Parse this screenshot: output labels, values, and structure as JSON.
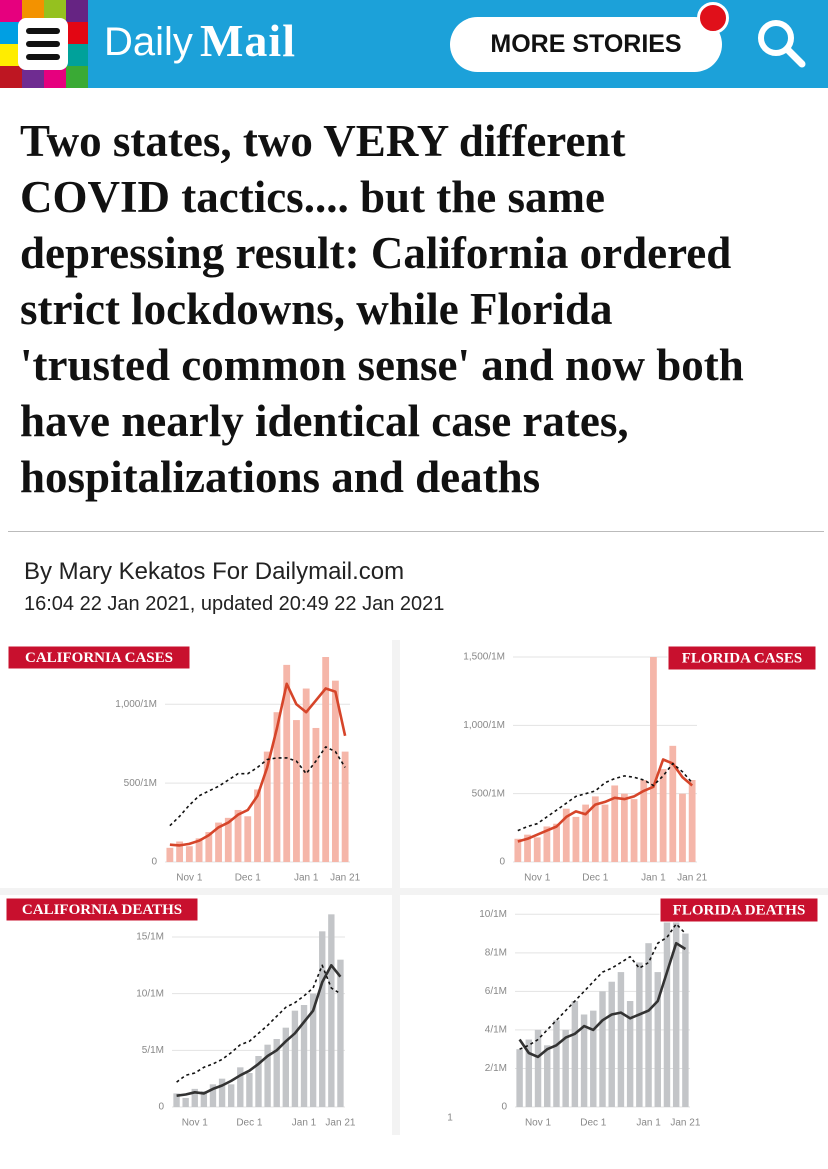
{
  "header": {
    "logo_daily": "Daily",
    "logo_mail": "Mail",
    "button": "MORE STORIES"
  },
  "article": {
    "headline_lines": [
      "Two states, two VERY different",
      "COVID tactics.... but the same",
      "depressing result: California ordered",
      "strict lockdowns, while Florida",
      "'trusted common sense' and now both",
      "have nearly identical case rates,",
      "hospitalizations and deaths"
    ],
    "byline": "By Mary Kekatos For Dailymail.com",
    "timestamp": "16:04 22 Jan 2021, updated 20:49 22 Jan 2021"
  },
  "chart_data": [
    {
      "type": "combo",
      "label": "CALIFORNIA CASES",
      "label_corner": "left",
      "categories": [
        null,
        null,
        "Nov 1",
        null,
        null,
        null,
        null,
        null,
        "Dec 1",
        null,
        null,
        null,
        null,
        null,
        "Jan 1",
        null,
        null,
        null,
        "Jan 21"
      ],
      "ylim": [
        0,
        1300
      ],
      "yticks": [
        0,
        {
          "value": 500,
          "label": "500/1M"
        },
        {
          "value": 1000,
          "label": "1,000/1M"
        }
      ],
      "grid": true,
      "series": [
        {
          "kind": "bar",
          "color": "#f5b6a9",
          "values": [
            90,
            130,
            100,
            150,
            190,
            250,
            280,
            330,
            290,
            460,
            700,
            950,
            1250,
            900,
            1100,
            850,
            1300,
            1150,
            700
          ]
        },
        {
          "kind": "line",
          "color": "#d6452a",
          "values": [
            110,
            105,
            115,
            135,
            170,
            220,
            250,
            300,
            330,
            420,
            600,
            850,
            1130,
            1000,
            950,
            1025,
            1100,
            1080,
            800
          ]
        },
        {
          "kind": "line",
          "dash": true,
          "color": "#111111",
          "values": [
            230,
            290,
            360,
            420,
            450,
            480,
            520,
            560,
            560,
            600,
            650,
            660,
            660,
            640,
            560,
            640,
            730,
            700,
            600
          ]
        }
      ]
    },
    {
      "type": "combo",
      "label": "FLORIDA CASES",
      "label_corner": "right",
      "categories": [
        null,
        null,
        "Nov 1",
        null,
        null,
        null,
        null,
        null,
        "Dec 1",
        null,
        null,
        null,
        null,
        null,
        "Jan 1",
        null,
        null,
        null,
        "Jan 21"
      ],
      "ylim": [
        0,
        1500
      ],
      "yticks": [
        0,
        {
          "value": 500,
          "label": "500/1M"
        },
        {
          "value": 1000,
          "label": "1,000/1M"
        },
        {
          "value": 1500,
          "label": "1,500/1M"
        }
      ],
      "grid": true,
      "series": [
        {
          "kind": "bar",
          "color": "#f5b6a9",
          "values": [
            170,
            200,
            180,
            260,
            280,
            390,
            330,
            420,
            480,
            420,
            560,
            500,
            460,
            600,
            1500,
            680,
            850,
            500,
            600
          ]
        },
        {
          "kind": "line",
          "color": "#d6452a",
          "values": [
            150,
            170,
            200,
            230,
            260,
            330,
            370,
            350,
            420,
            440,
            470,
            460,
            480,
            520,
            550,
            750,
            720,
            620,
            560
          ]
        },
        {
          "kind": "line",
          "dash": true,
          "color": "#111111",
          "values": [
            230,
            260,
            280,
            330,
            380,
            430,
            480,
            500,
            520,
            580,
            610,
            630,
            620,
            600,
            560,
            630,
            720,
            660,
            580
          ]
        }
      ]
    },
    {
      "type": "combo",
      "label": "CALIFORNIA DEATHS",
      "label_corner": "left",
      "categories": [
        null,
        null,
        "Nov 1",
        null,
        null,
        null,
        null,
        null,
        "Dec 1",
        null,
        null,
        null,
        null,
        null,
        "Jan 1",
        null,
        null,
        null,
        "Jan 21"
      ],
      "ylim": [
        0,
        18
      ],
      "yticks": [
        0,
        {
          "value": 5,
          "label": "5/1M"
        },
        {
          "value": 10,
          "label": "10/1M"
        },
        {
          "value": 15,
          "label": "15/1M"
        }
      ],
      "grid": true,
      "series": [
        {
          "kind": "bar",
          "color": "#c3c5c8",
          "values": [
            1.2,
            0.8,
            1.6,
            1.4,
            2.0,
            2.5,
            2.0,
            3.5,
            3.0,
            4.5,
            5.5,
            6.0,
            7.0,
            8.5,
            9.0,
            10.0,
            15.5,
            17.0,
            13.0
          ]
        },
        {
          "kind": "line",
          "color": "#333333",
          "values": [
            1.0,
            1.1,
            1.3,
            1.2,
            1.6,
            1.9,
            2.3,
            2.8,
            3.2,
            3.8,
            4.5,
            5.0,
            5.8,
            6.5,
            7.5,
            8.5,
            11.0,
            12.5,
            11.5
          ]
        },
        {
          "kind": "line",
          "dash": true,
          "color": "#111111",
          "values": [
            2.2,
            2.8,
            3.0,
            3.5,
            3.8,
            4.2,
            4.8,
            5.5,
            5.8,
            6.5,
            7.2,
            8.0,
            8.8,
            9.2,
            9.8,
            10.5,
            12.5,
            10.5,
            10.0
          ]
        }
      ]
    },
    {
      "type": "combo",
      "label": "FLORIDA DEATHS",
      "label_corner": "right",
      "footnote": "1",
      "categories": [
        null,
        null,
        "Nov 1",
        null,
        null,
        null,
        null,
        null,
        "Dec 1",
        null,
        null,
        null,
        null,
        null,
        "Jan 1",
        null,
        null,
        null,
        "Jan 21"
      ],
      "ylim": [
        0,
        11
      ],
      "yticks": [
        0,
        {
          "value": 2,
          "label": "2/1M"
        },
        {
          "value": 4,
          "label": "4/1M"
        },
        {
          "value": 6,
          "label": "6/1M"
        },
        {
          "value": 8,
          "label": "8/1M"
        },
        {
          "value": 10,
          "label": "10/1M"
        }
      ],
      "grid": true,
      "series": [
        {
          "kind": "bar",
          "color": "#c3c5c8",
          "values": [
            3.0,
            3.5,
            4.0,
            3.2,
            4.5,
            4.0,
            5.5,
            4.8,
            5.0,
            6.0,
            6.5,
            7.0,
            5.5,
            7.5,
            8.5,
            7.0,
            10.0,
            10.5,
            9.0
          ]
        },
        {
          "kind": "line",
          "color": "#333333",
          "values": [
            3.5,
            2.8,
            2.6,
            3.0,
            3.2,
            3.6,
            3.8,
            4.2,
            4.0,
            4.5,
            4.8,
            4.9,
            4.6,
            4.8,
            5.0,
            5.5,
            7.0,
            8.5,
            8.2
          ]
        },
        {
          "kind": "line",
          "dash": true,
          "color": "#111111",
          "values": [
            3.0,
            3.2,
            3.5,
            4.0,
            4.5,
            5.0,
            5.5,
            6.0,
            6.5,
            7.0,
            7.2,
            7.5,
            7.8,
            7.2,
            7.5,
            8.5,
            8.8,
            9.5,
            9.0
          ]
        }
      ]
    }
  ]
}
